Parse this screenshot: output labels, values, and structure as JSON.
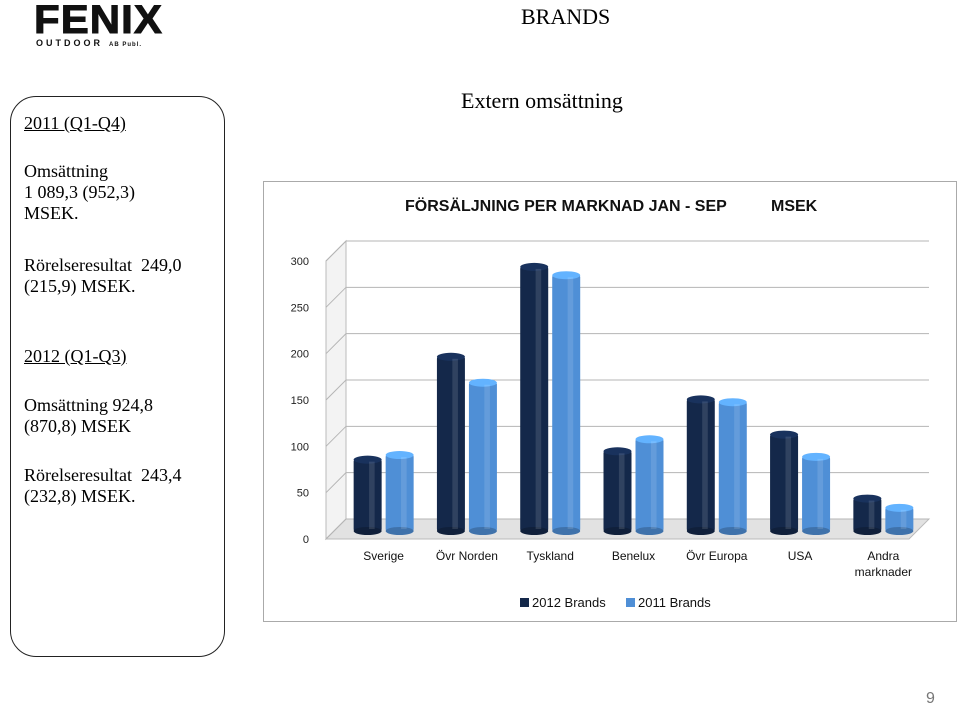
{
  "logo": {
    "main": "FENIX",
    "sub": "OUTDOOR",
    "sub_small": "AB Publ."
  },
  "header": {
    "brand_label": "BRANDS",
    "subtitle": "Extern omsättning"
  },
  "sidebar": {
    "y2011_heading": "2011 (Q1-Q4)",
    "y2011_sales_label": "Omsättning",
    "y2011_sales_value": "1 089,3 (952,3)",
    "y2011_sales_unit": "MSEK.",
    "y2011_result_line1": "Rörelseresultat  249,0",
    "y2011_result_line2": "(215,9) MSEK.",
    "y2012_heading": "2012 (Q1-Q3)",
    "y2012_sales_line1": "Omsättning 924,8",
    "y2012_sales_line2": "(870,8) MSEK",
    "y2012_result_line1": "Rörelseresultat  243,4",
    "y2012_result_line2": "(232,8) MSEK."
  },
  "chart_data": {
    "type": "bar",
    "title": "FÖRSÄLJNING PER MARKNAD JAN - SEP",
    "unit_label": "MSEK",
    "categories": [
      "Sverige",
      "Övr Norden",
      "Tyskland",
      "Benelux",
      "Övr Europa",
      "USA",
      "Andra marknader"
    ],
    "series": [
      {
        "name": "2012 Brands",
        "values": [
          77,
          188,
          285,
          86,
          142,
          104,
          35
        ],
        "color": "#14284a"
      },
      {
        "name": "2011 Brands",
        "values": [
          82,
          160,
          276,
          99,
          139,
          80,
          25
        ],
        "color": "#4f8fd6"
      }
    ],
    "ylim": [
      0,
      300
    ],
    "yticks": [
      0,
      50,
      100,
      150,
      200,
      250,
      300
    ],
    "grid": true,
    "legend": "bottom"
  },
  "footer": {
    "page_number": "9"
  }
}
